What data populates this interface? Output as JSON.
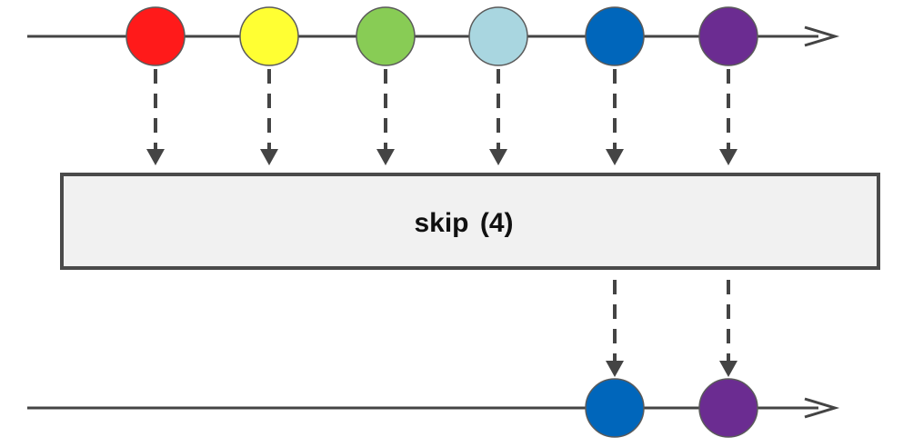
{
  "operator": {
    "name": "skip",
    "argument": "(4)"
  },
  "colors": {
    "line": "#444444",
    "operator_fill": "#f1f1f1",
    "operator_border": "#4a4a4a",
    "text": "#111111"
  },
  "input_marbles": [
    {
      "color": "#ff1a1a"
    },
    {
      "color": "#ffff33"
    },
    {
      "color": "#88cc55"
    },
    {
      "color": "#a9d6e0"
    },
    {
      "color": "#0066bb"
    },
    {
      "color": "#6b2c91"
    }
  ],
  "output_marbles": [
    {
      "color": "#0066bb"
    },
    {
      "color": "#6b2c91"
    }
  ]
}
